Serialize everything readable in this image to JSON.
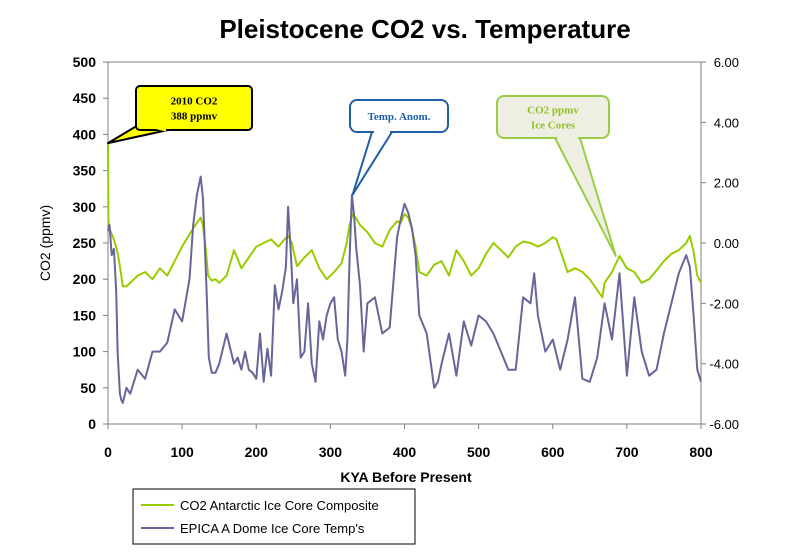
{
  "chart_data": {
    "type": "line",
    "title": "Pleistocene CO2 vs. Temperature",
    "xlabel": "KYA Before Present",
    "ylabel": "CO2 (ppmv)",
    "xlim": [
      0,
      800
    ],
    "ylim": [
      0,
      500
    ],
    "y2lim": [
      -6,
      6
    ],
    "x_ticks": [
      "0",
      "100",
      "200",
      "300",
      "400",
      "500",
      "600",
      "700",
      "800"
    ],
    "y_ticks": [
      "0",
      "50",
      "100",
      "150",
      "200",
      "250",
      "300",
      "350",
      "400",
      "450",
      "500"
    ],
    "y2_ticks": [
      "-6.00",
      "-4.00",
      "-2.00",
      "0.00",
      "2.00",
      "4.00",
      "6.00"
    ],
    "grid": false,
    "legend_position": "bottom-left",
    "colors": {
      "co2": "#99cc00",
      "temp": "#666699",
      "plot_border": "#808080"
    },
    "series": [
      {
        "name": "CO2 Antarctic Ice Core Composite",
        "axis": "left",
        "x": [
          0,
          0.5,
          2,
          5,
          8,
          12,
          15,
          18,
          20,
          25,
          30,
          40,
          50,
          60,
          70,
          80,
          90,
          100,
          110,
          115,
          120,
          125,
          128,
          132,
          135,
          140,
          145,
          150,
          160,
          170,
          180,
          190,
          200,
          210,
          220,
          230,
          238,
          243,
          248,
          255,
          265,
          275,
          285,
          295,
          305,
          315,
          322,
          326,
          330,
          334,
          340,
          350,
          360,
          370,
          380,
          390,
          395,
          400,
          405,
          410,
          415,
          420,
          430,
          440,
          450,
          460,
          470,
          480,
          490,
          500,
          510,
          520,
          530,
          540,
          550,
          560,
          570,
          580,
          590,
          600,
          605,
          610,
          620,
          630,
          640,
          650,
          660,
          667,
          670,
          680,
          690,
          700,
          710,
          720,
          730,
          740,
          750,
          760,
          770,
          780,
          785,
          790,
          795,
          800
        ],
        "values": [
          388,
          280,
          270,
          262,
          255,
          240,
          225,
          205,
          190,
          190,
          195,
          205,
          210,
          200,
          215,
          205,
          225,
          245,
          262,
          270,
          278,
          285,
          275,
          240,
          205,
          198,
          200,
          195,
          205,
          240,
          215,
          230,
          245,
          250,
          255,
          245,
          255,
          260,
          250,
          218,
          230,
          240,
          215,
          200,
          210,
          222,
          250,
          275,
          290,
          285,
          275,
          265,
          250,
          245,
          268,
          280,
          278,
          290,
          285,
          270,
          245,
          210,
          205,
          220,
          225,
          205,
          240,
          225,
          205,
          215,
          235,
          250,
          240,
          230,
          245,
          252,
          250,
          245,
          250,
          258,
          255,
          240,
          210,
          215,
          210,
          200,
          185,
          175,
          195,
          210,
          232,
          215,
          210,
          195,
          200,
          212,
          225,
          235,
          240,
          250,
          260,
          238,
          205,
          195
        ]
      },
      {
        "name": "EPICA A Dome Ice Core Temp's",
        "axis": "right",
        "x": [
          0,
          2,
          5,
          8,
          11,
          13,
          16,
          18,
          20,
          25,
          30,
          40,
          50,
          60,
          70,
          80,
          90,
          100,
          110,
          115,
          120,
          125,
          128,
          130,
          133,
          136,
          140,
          145,
          150,
          160,
          170,
          175,
          180,
          185,
          190,
          195,
          200,
          205,
          210,
          215,
          220,
          225,
          230,
          235,
          240,
          243,
          247,
          250,
          255,
          260,
          265,
          270,
          275,
          280,
          285,
          290,
          295,
          300,
          305,
          310,
          315,
          320,
          323,
          326,
          329,
          332,
          335,
          340,
          345,
          350,
          360,
          370,
          380,
          390,
          395,
          400,
          405,
          410,
          415,
          420,
          430,
          440,
          445,
          450,
          460,
          470,
          480,
          490,
          500,
          510,
          520,
          530,
          540,
          550,
          560,
          570,
          575,
          580,
          590,
          600,
          610,
          620,
          630,
          640,
          650,
          660,
          670,
          680,
          690,
          700,
          710,
          720,
          730,
          740,
          750,
          760,
          770,
          780,
          785,
          790,
          795,
          800
        ],
        "values": [
          0.4,
          0.6,
          -0.4,
          -0.2,
          -1.6,
          -3.6,
          -5.0,
          -5.2,
          -5.3,
          -4.8,
          -5.0,
          -4.2,
          -4.5,
          -3.6,
          -3.6,
          -3.3,
          -2.2,
          -2.6,
          -1.2,
          0.6,
          1.6,
          2.2,
          1.5,
          0.3,
          -1.6,
          -3.8,
          -4.3,
          -4.3,
          -4.0,
          -3.0,
          -4.0,
          -3.8,
          -4.2,
          -3.6,
          -4.2,
          -4.3,
          -4.5,
          -3.0,
          -4.6,
          -3.5,
          -4.4,
          -1.4,
          -2.2,
          -1.6,
          -0.8,
          1.2,
          -0.5,
          -2.0,
          -1.2,
          -3.8,
          -3.6,
          -2.0,
          -4.0,
          -4.6,
          -2.6,
          -3.2,
          -2.4,
          -2.0,
          -1.8,
          -3.2,
          -3.6,
          -4.4,
          -3.2,
          -0.5,
          1.6,
          0.9,
          -0.2,
          -1.4,
          -3.6,
          -2.0,
          -1.8,
          -3.0,
          -2.8,
          0.2,
          0.8,
          1.3,
          1.0,
          0.5,
          -0.4,
          -2.4,
          -3.0,
          -4.8,
          -4.6,
          -4.0,
          -3.0,
          -4.4,
          -2.6,
          -3.4,
          -2.4,
          -2.6,
          -3.0,
          -3.6,
          -4.2,
          -4.2,
          -1.8,
          -2.0,
          -1.0,
          -2.4,
          -3.6,
          -3.2,
          -4.2,
          -3.2,
          -1.8,
          -4.5,
          -4.6,
          -3.8,
          -2.0,
          -3.2,
          -1.0,
          -4.4,
          -1.8,
          -3.6,
          -4.4,
          -4.2,
          -3.0,
          -2.0,
          -1.0,
          -0.4,
          -0.8,
          -2.4,
          -4.2,
          -4.6
        ]
      }
    ],
    "annotations": [
      {
        "text_lines": [
          "2010 CO2",
          "388 ppmv"
        ],
        "x": 0,
        "y": 388,
        "axis": "left",
        "fill": "#ffff00",
        "border": "#000000",
        "text_color": "#000000"
      },
      {
        "text_lines": [
          "Temp. Anom."
        ],
        "x": 330,
        "y": 1.6,
        "axis": "right",
        "fill": "#ffffff",
        "border": "#1f5fa8",
        "text_color": "#1f5fa8"
      },
      {
        "text_lines": [
          "CO2 ppmv",
          "Ice Cores"
        ],
        "x": 685,
        "y": 232,
        "axis": "left",
        "fill": "#eeeee2",
        "border": "#9acd45",
        "text_color": "#92c020"
      }
    ]
  }
}
